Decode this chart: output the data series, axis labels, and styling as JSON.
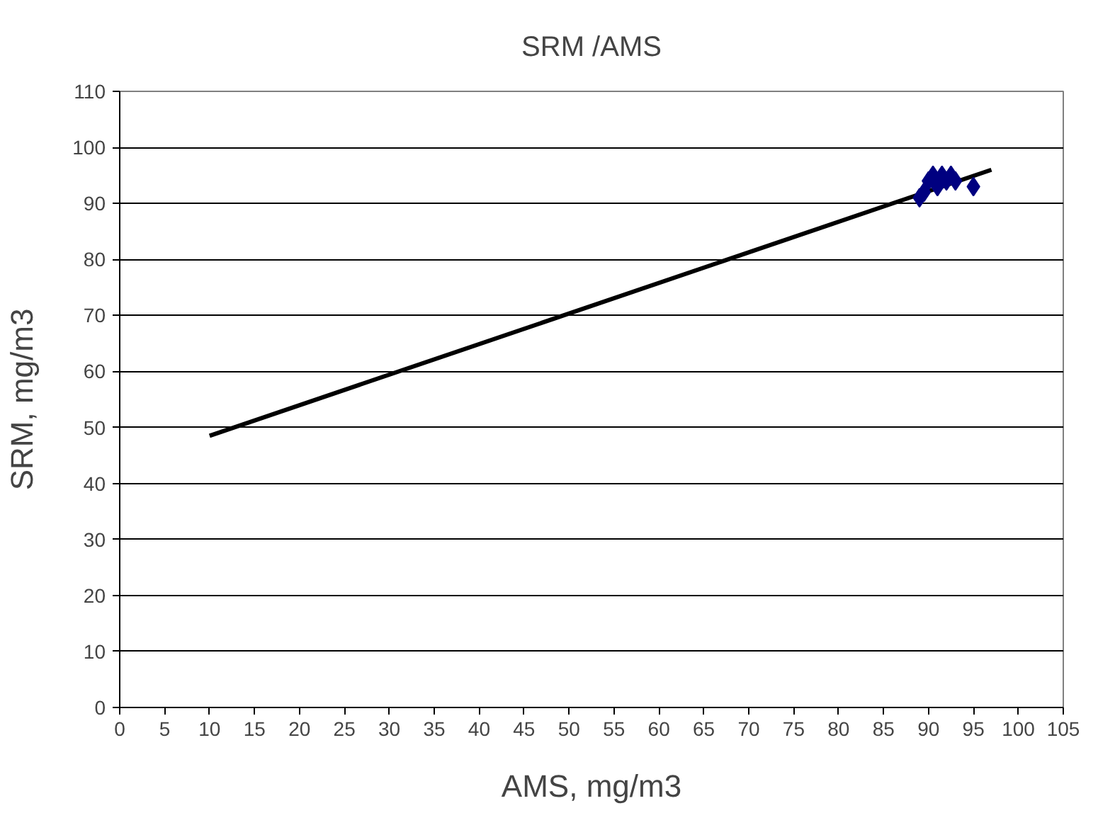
{
  "chart_data": {
    "type": "scatter",
    "title": "SRM /AMS",
    "xlabel": "AMS, mg/m3",
    "ylabel": "SRM, mg/m3",
    "xlim": [
      0,
      105
    ],
    "xticks": [
      0,
      5,
      10,
      15,
      20,
      25,
      30,
      35,
      40,
      45,
      50,
      55,
      60,
      65,
      70,
      75,
      80,
      85,
      90,
      95,
      100,
      105
    ],
    "ylim": [
      0,
      110
    ],
    "yticks": [
      0,
      10,
      20,
      30,
      40,
      50,
      60,
      70,
      80,
      90,
      100,
      110
    ],
    "grid": "y",
    "marker": "diamond",
    "series": [
      {
        "color": "#000080",
        "x": [
          89,
          89.5,
          90,
          90.5,
          91,
          91.5,
          92,
          92.5,
          93,
          95
        ],
        "values": [
          91,
          92,
          94,
          95,
          93,
          95,
          94,
          95,
          94,
          93
        ]
      },
      {
        "type": "line",
        "color": "#000000",
        "marker": "none",
        "x": [
          10,
          97
        ],
        "values": [
          48.5,
          96
        ]
      }
    ]
  }
}
